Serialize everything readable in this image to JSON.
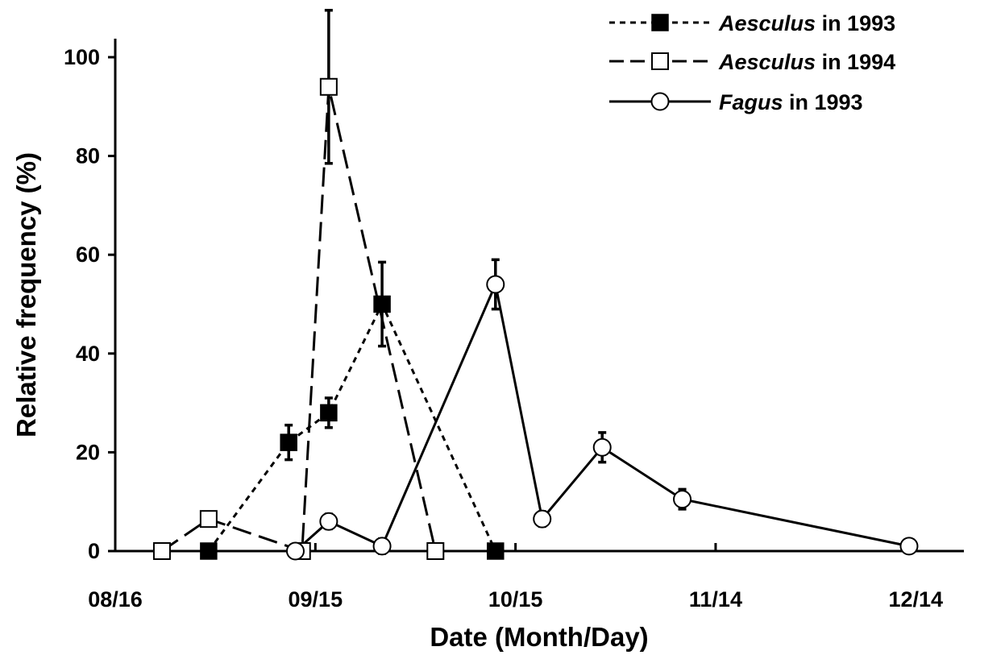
{
  "chart_data": {
    "type": "line",
    "xlabel": "Date (Month/Day)",
    "ylabel": "Relative frequency (%)",
    "x_ticks": [
      "08/16",
      "09/15",
      "10/15",
      "11/14",
      "12/14"
    ],
    "y_ticks": [
      "0",
      "20",
      "40",
      "60",
      "80",
      "100"
    ],
    "xlim": [
      "08/16",
      "12/14"
    ],
    "ylim": [
      0,
      110
    ],
    "legend_position": "top-right",
    "series": [
      {
        "name_italic": "Aesculus",
        "name_rest": " in 1993",
        "marker": "filled-square",
        "dash": "dotted",
        "points": [
          {
            "x": "08/30",
            "y": 0,
            "err": 0
          },
          {
            "x": "09/11",
            "y": 22,
            "err": 3.5
          },
          {
            "x": "09/17",
            "y": 28,
            "err": 3
          },
          {
            "x": "09/25",
            "y": 50,
            "err": 8.5
          },
          {
            "x": "10/12",
            "y": 0,
            "err": 0
          }
        ]
      },
      {
        "name_italic": "Aesculus",
        "name_rest": " in 1994",
        "marker": "open-square",
        "dash": "dashed",
        "points": [
          {
            "x": "08/23",
            "y": 0,
            "err": 0
          },
          {
            "x": "08/30",
            "y": 6.5,
            "err": 0
          },
          {
            "x": "09/13",
            "y": 0,
            "err": 0
          },
          {
            "x": "09/17",
            "y": 94,
            "err": 15.5
          },
          {
            "x": "10/03",
            "y": 0,
            "err": 0
          }
        ]
      },
      {
        "name_italic": "Fagus",
        "name_rest": " in 1993",
        "marker": "open-circle",
        "dash": "solid",
        "points": [
          {
            "x": "09/12",
            "y": 0,
            "err": 0
          },
          {
            "x": "09/17",
            "y": 6,
            "err": 1.5
          },
          {
            "x": "09/25",
            "y": 1,
            "err": 1.5
          },
          {
            "x": "10/12",
            "y": 54,
            "err": 5
          },
          {
            "x": "10/19",
            "y": 6.5,
            "err": 1.5
          },
          {
            "x": "10/28",
            "y": 21,
            "err": 3
          },
          {
            "x": "11/09",
            "y": 10.5,
            "err": 2
          },
          {
            "x": "12/13",
            "y": 1,
            "err": 0
          }
        ]
      }
    ]
  }
}
